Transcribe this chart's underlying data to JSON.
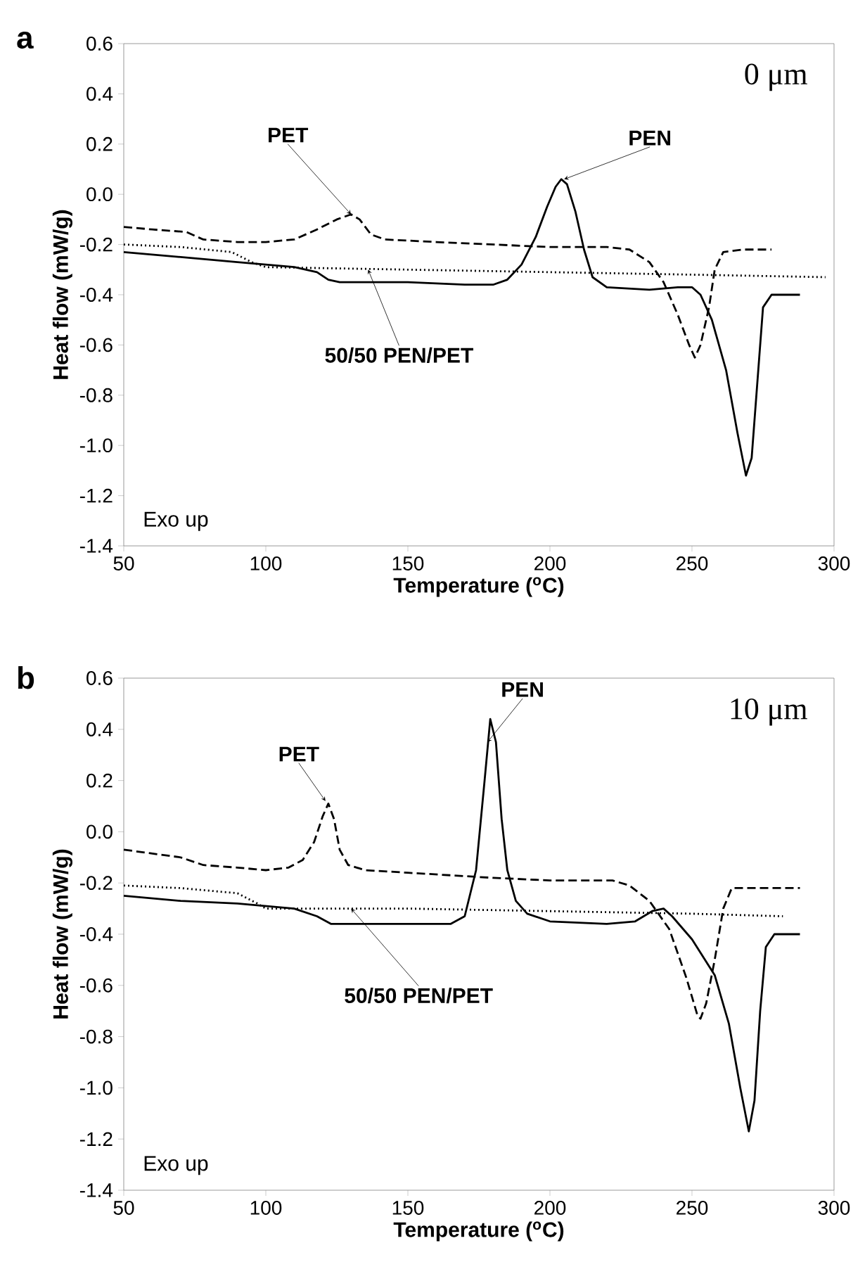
{
  "chart_data": [
    {
      "type": "line",
      "title": "a",
      "xlabel": "Temperature ($^{o}$C)",
      "ylabel": "Heat flow (mW/g)",
      "xlim": [
        50,
        300
      ],
      "ylim": [
        -1.4,
        0.6
      ],
      "xticks": [
        50,
        100,
        150,
        200,
        250,
        300
      ],
      "yticks": [
        {
          "value": 0.6,
          "label": "0.6"
        },
        {
          "value": 0.4,
          "label": "0.4"
        },
        {
          "value": 0.2,
          "label": "0.2"
        },
        {
          "value": 0,
          "label": "0.0"
        },
        {
          "value": -0.2,
          "label": "-0.2"
        },
        {
          "value": -0.4,
          "label": "-0.4"
        },
        {
          "value": -0.6,
          "label": "-0.6"
        },
        {
          "value": -0.8,
          "label": "-0.8"
        },
        {
          "value": -1.0,
          "label": "-1.0"
        },
        {
          "value": -1.2,
          "label": "-1.2"
        },
        {
          "value": -1.4,
          "label": "-1.4"
        }
      ],
      "series": [
        {
          "color": "#000000",
          "line_style": "dashed",
          "x": [
            50,
            60,
            72,
            78,
            90,
            100,
            110,
            118,
            125,
            130,
            133,
            137,
            142,
            160,
            180,
            200,
            220,
            228,
            235,
            240,
            245,
            249,
            251,
            253,
            256,
            258,
            261,
            268,
            278
          ],
          "values": [
            -0.13,
            -0.14,
            -0.15,
            -0.18,
            -0.19,
            -0.19,
            -0.18,
            -0.14,
            -0.1,
            -0.08,
            -0.1,
            -0.16,
            -0.18,
            -0.19,
            -0.2,
            -0.21,
            -0.21,
            -0.22,
            -0.27,
            -0.35,
            -0.48,
            -0.6,
            -0.65,
            -0.6,
            -0.45,
            -0.3,
            -0.23,
            -0.22,
            -0.22
          ]
        },
        {
          "color": "#000000",
          "line_style": "solid",
          "x": [
            50,
            70,
            90,
            110,
            118,
            122,
            126,
            150,
            170,
            180,
            185,
            190,
            195,
            199,
            202,
            204,
            206,
            209,
            212,
            215,
            220,
            235,
            245,
            250,
            253,
            257,
            262,
            266,
            269,
            271,
            273,
            275,
            278,
            288
          ],
          "values": [
            -0.23,
            -0.25,
            -0.27,
            -0.29,
            -0.31,
            -0.34,
            -0.35,
            -0.35,
            -0.36,
            -0.36,
            -0.34,
            -0.28,
            -0.17,
            -0.05,
            0.03,
            0.06,
            0.04,
            -0.07,
            -0.22,
            -0.33,
            -0.37,
            -0.38,
            -0.37,
            -0.37,
            -0.4,
            -0.5,
            -0.7,
            -0.95,
            -1.12,
            -1.05,
            -0.75,
            -0.45,
            -0.4,
            -0.4
          ]
        },
        {
          "color": "#000000",
          "line_style": "dotted",
          "x": [
            50,
            70,
            88,
            95,
            100,
            150,
            200,
            250,
            297
          ],
          "values": [
            -0.2,
            -0.21,
            -0.23,
            -0.27,
            -0.29,
            -0.3,
            -0.31,
            -0.32,
            -0.33
          ]
        }
      ],
      "annotations": [
        {
          "text": "PET",
          "x": 130,
          "y": -0.08
        },
        {
          "text": "PEN",
          "x": 205,
          "y": 0.06
        },
        {
          "text": "50/50 PEN/PET",
          "x": 136,
          "y": -0.3
        },
        "0 μm",
        "Exo up"
      ]
    },
    {
      "type": "line",
      "title": "b",
      "xlabel": "Temperature ($^{o}$C)",
      "ylabel": "Heat flow (mW/g)",
      "xlim": [
        50,
        300
      ],
      "ylim": [
        -1.4,
        0.6
      ],
      "xticks": [
        50,
        100,
        150,
        200,
        250,
        300
      ],
      "yticks": [
        {
          "value": 0.6,
          "label": "0.6"
        },
        {
          "value": 0.4,
          "label": "0.4"
        },
        {
          "value": 0.2,
          "label": "0.2"
        },
        {
          "value": 0,
          "label": "0.0"
        },
        {
          "value": -0.2,
          "label": "-0.2"
        },
        {
          "value": -0.4,
          "label": "-0.4"
        },
        {
          "value": -0.6,
          "label": "-0.6"
        },
        {
          "value": -0.8,
          "label": "-0.8"
        },
        {
          "value": -1.0,
          "label": "-1.0"
        },
        {
          "value": -1.2,
          "label": "-1.2"
        },
        {
          "value": -1.4,
          "label": "-1.4"
        }
      ],
      "series": [
        {
          "color": "#000000",
          "line_style": "dashed",
          "x": [
            50,
            70,
            78,
            90,
            100,
            108,
            113,
            117,
            120,
            122,
            124,
            126,
            129,
            135,
            150,
            180,
            200,
            222,
            228,
            235,
            242,
            248,
            252,
            253,
            255,
            258,
            261,
            264,
            288
          ],
          "values": [
            -0.07,
            -0.1,
            -0.13,
            -0.14,
            -0.15,
            -0.14,
            -0.11,
            -0.04,
            0.06,
            0.11,
            0.05,
            -0.07,
            -0.13,
            -0.15,
            -0.16,
            -0.18,
            -0.19,
            -0.19,
            -0.21,
            -0.27,
            -0.38,
            -0.57,
            -0.72,
            -0.73,
            -0.67,
            -0.5,
            -0.3,
            -0.22,
            -0.22
          ]
        },
        {
          "color": "#000000",
          "line_style": "solid",
          "x": [
            50,
            70,
            90,
            110,
            118,
            123,
            140,
            165,
            170,
            174,
            177,
            179,
            181,
            183,
            185,
            188,
            192,
            200,
            220,
            230,
            236,
            240,
            243,
            250,
            258,
            263,
            267,
            270,
            272,
            274,
            276,
            279,
            288
          ],
          "values": [
            -0.25,
            -0.27,
            -0.28,
            -0.3,
            -0.33,
            -0.36,
            -0.36,
            -0.36,
            -0.33,
            -0.15,
            0.2,
            0.44,
            0.35,
            0.05,
            -0.15,
            -0.27,
            -0.32,
            -0.35,
            -0.36,
            -0.35,
            -0.31,
            -0.3,
            -0.33,
            -0.42,
            -0.56,
            -0.75,
            -1.0,
            -1.17,
            -1.05,
            -0.7,
            -0.45,
            -0.4,
            -0.4
          ]
        },
        {
          "color": "#000000",
          "line_style": "dotted",
          "x": [
            50,
            70,
            90,
            97,
            100,
            150,
            200,
            250,
            282
          ],
          "values": [
            -0.21,
            -0.22,
            -0.24,
            -0.28,
            -0.3,
            -0.3,
            -0.31,
            -0.32,
            -0.33
          ]
        }
      ],
      "annotations": [
        {
          "text": "PET",
          "x": 121,
          "y": 0.12
        },
        {
          "text": "PEN",
          "x": 178,
          "y": 0.35
        },
        {
          "text": "50/50 PEN/PET",
          "x": 130,
          "y": -0.3
        },
        "10 μm",
        "Exo up"
      ]
    }
  ]
}
